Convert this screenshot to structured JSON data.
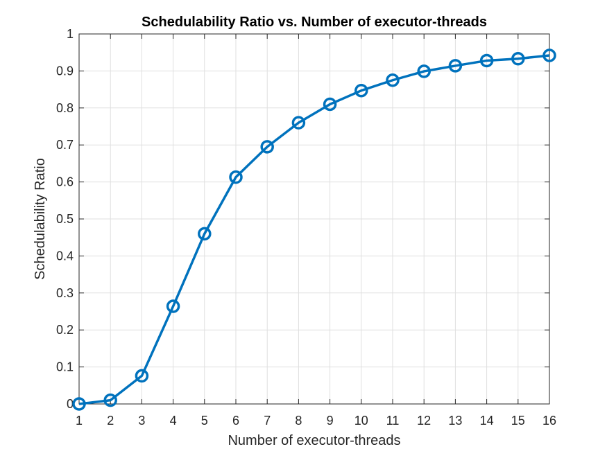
{
  "chart_data": {
    "type": "line",
    "title": "Schedulability Ratio vs. Number of executor-threads",
    "xlabel": "Number of executor-threads",
    "ylabel": "Schedulability Ratio",
    "xlim": [
      1,
      16
    ],
    "ylim": [
      0,
      1
    ],
    "xticks": [
      1,
      2,
      3,
      4,
      5,
      6,
      7,
      8,
      9,
      10,
      11,
      12,
      13,
      14,
      15,
      16
    ],
    "yticks": [
      0,
      0.1,
      0.2,
      0.3,
      0.4,
      0.5,
      0.6,
      0.7,
      0.8,
      0.9,
      1
    ],
    "xtick_labels": [
      "1",
      "2",
      "3",
      "4",
      "5",
      "6",
      "7",
      "8",
      "9",
      "10",
      "11",
      "12",
      "13",
      "14",
      "15",
      "16"
    ],
    "ytick_labels": [
      "0",
      "0.1",
      "0.2",
      "0.3",
      "0.4",
      "0.5",
      "0.6",
      "0.7",
      "0.8",
      "0.9",
      "1"
    ],
    "grid": true,
    "series": [
      {
        "x": [
          1,
          2,
          3,
          4,
          5,
          6,
          7,
          8,
          9,
          10,
          11,
          12,
          13,
          14,
          15,
          16
        ],
        "values": [
          0.0,
          0.01,
          0.076,
          0.264,
          0.46,
          0.613,
          0.695,
          0.76,
          0.81,
          0.847,
          0.875,
          0.899,
          0.914,
          0.928,
          0.933,
          0.942
        ],
        "marker": "circle",
        "color": "#0072BD"
      }
    ]
  }
}
